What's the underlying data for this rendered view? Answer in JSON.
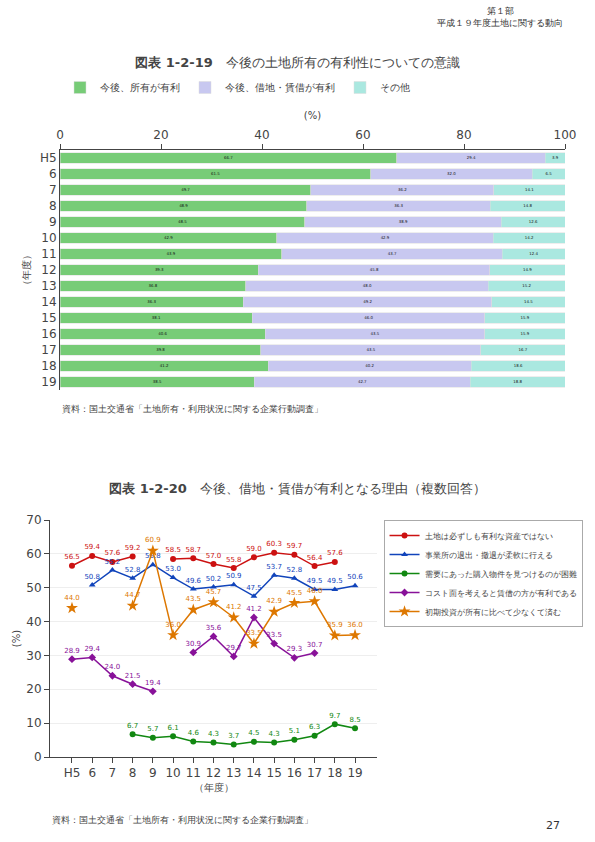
{
  "chart_data": [
    {
      "type": "bar",
      "orientation": "horizontal",
      "stacked": true,
      "title": "今後の土地所有の有利性についての意識",
      "subtitle": "図表 1-2-19",
      "categories": [
        "H5",
        "6",
        "7",
        "8",
        "9",
        "10",
        "11",
        "12",
        "13",
        "14",
        "15",
        "16",
        "17",
        "18",
        "19"
      ],
      "series": [
        {
          "name": "今後、所有が有利",
          "color": "#77cc77",
          "values": [
            66.7,
            61.5,
            49.7,
            48.9,
            48.5,
            42.9,
            43.9,
            39.3,
            36.8,
            36.3,
            38.1,
            40.6,
            39.8,
            41.2,
            38.5
          ],
          "value_labels": [
            "66.7",
            "61.5",
            "49.7",
            "48.9",
            "48.5",
            "42.9",
            "43.9",
            "39.3",
            "36.8",
            "36.3",
            "38.1",
            "40.6",
            "39.8",
            "41.2",
            "38.5"
          ]
        },
        {
          "name": "今後、借地・賃借が有利",
          "color": "#c8c8f0",
          "values": [
            29.4,
            32.0,
            36.2,
            36.3,
            38.9,
            42.9,
            43.7,
            45.8,
            48.0,
            49.2,
            46.0,
            43.5,
            43.5,
            40.2,
            42.7
          ],
          "value_labels": [
            "29.4",
            "32.0",
            "36.2",
            "36.3",
            "38.9",
            "42.9",
            "43.7",
            "45.8",
            "48.0",
            "49.2",
            "46.0",
            "43.5",
            "43.5",
            "40.2",
            "42.7"
          ]
        },
        {
          "name": "その他",
          "color": "#aae8e0",
          "values": [
            3.9,
            6.5,
            14.1,
            14.8,
            12.6,
            14.2,
            12.4,
            14.9,
            15.2,
            14.5,
            15.9,
            15.9,
            16.7,
            18.6,
            18.8
          ],
          "value_labels": [
            "3.9",
            "6.5",
            "14.1",
            "14.8",
            "12.6",
            "14.2",
            "12.4",
            "14.9",
            "15.2",
            "14.5",
            "15.9",
            "15.9",
            "16.7",
            "18.6",
            "18.8"
          ]
        }
      ],
      "xlim": [
        0,
        100
      ],
      "xticks": [
        0,
        20,
        40,
        60,
        80,
        100
      ],
      "xlabel": "(%)",
      "ylabel": "（年度）",
      "grid": false,
      "data_labels": true,
      "legend": "top",
      "annotations": [
        "第１部\n平成１９年度土地に関する動向",
        "資料：国土交通省「土地所有・利用状況に関する企業行動調査」"
      ]
    },
    {
      "type": "line",
      "title": "今後、借地・賃借が有利となる理由（複数回答）",
      "subtitle": "図表 1-2-20",
      "categories": [
        "H5",
        "6",
        "7",
        "8",
        "9",
        "10",
        "11",
        "12",
        "13",
        "14",
        "15",
        "16",
        "17",
        "18",
        "19"
      ],
      "series": [
        {
          "name": "土地は必ずしも有利な資産ではない",
          "color": "#cc1111",
          "marker": "circle",
          "values": [
            56.5,
            59.4,
            57.6,
            59.2,
            null,
            58.5,
            58.7,
            57.0,
            55.8,
            59.0,
            60.3,
            59.7,
            56.4,
            57.6,
            null
          ],
          "value_labels": [
            "56.5",
            "59.4",
            "57.6",
            "59.2",
            null,
            "58.5",
            "58.7",
            "57.0",
            "55.8",
            "59.0",
            "60.3",
            "59.7",
            "56.4",
            "57.6",
            null
          ]
        },
        {
          "name": "事業所の退出・撤退が柔軟に行える",
          "color": "#1144bb",
          "marker": "triangle-up",
          "values": [
            null,
            50.8,
            55.2,
            52.8,
            56.8,
            53.0,
            49.6,
            50.2,
            50.9,
            47.5,
            53.7,
            52.8,
            49.5,
            49.5,
            50.6
          ],
          "value_labels": [
            null,
            "50.8",
            "55.2",
            "52.8",
            "56.8",
            "53.0",
            "49.6",
            "50.2",
            "50.9",
            "47.5",
            "53.7",
            "52.8",
            "49.5",
            "49.5",
            "50.6"
          ]
        },
        {
          "name": "需要にあった購入物件を見つけるのが困難",
          "color": "#118811",
          "marker": "circle",
          "values": [
            null,
            null,
            null,
            6.7,
            5.7,
            6.1,
            4.6,
            4.3,
            3.7,
            4.5,
            4.3,
            5.1,
            6.3,
            9.7,
            8.5
          ],
          "value_labels": [
            null,
            null,
            null,
            "6.7",
            "5.7",
            "6.1",
            "4.6",
            "4.3",
            "3.7",
            "4.5",
            "4.3",
            "5.1",
            "6.3",
            "9.7",
            "8.5"
          ]
        },
        {
          "name": "コスト面を考えると賃借の方が有利である",
          "color": "#881199",
          "marker": "diamond",
          "values": [
            28.9,
            29.4,
            24.0,
            21.5,
            19.4,
            null,
            30.9,
            35.6,
            29.7,
            41.2,
            33.5,
            29.3,
            30.7,
            null,
            null
          ],
          "value_labels": [
            "28.9",
            "29.4",
            "24.0",
            "21.5",
            "19.4",
            null,
            "30.9",
            "35.6",
            "29.7",
            "41.2",
            "33.5",
            "29.3",
            "30.7",
            null,
            null
          ]
        },
        {
          "name": "初期投資が所有に比べて少なくて済む",
          "color": "#dd7700",
          "marker": "star",
          "values": [
            44.0,
            null,
            null,
            44.7,
            60.9,
            36.0,
            43.5,
            45.7,
            41.2,
            33.5,
            42.9,
            45.5,
            46.0,
            35.9,
            36.0
          ],
          "value_labels": [
            "44.0",
            null,
            null,
            "44.7",
            "60.9",
            "36.0",
            "43.5",
            "45.7",
            "41.2",
            "33.5",
            "42.9",
            "45.5",
            "46.0",
            "35.9",
            "36.0"
          ]
        }
      ],
      "ylim": [
        0,
        70
      ],
      "yticks": [
        0,
        10,
        20,
        30,
        40,
        50,
        60,
        70
      ],
      "xlabel": "（年度）",
      "ylabel": "(%)",
      "grid": true,
      "data_labels": true,
      "legend": "right",
      "annotations": [
        "資料：国土交通省「土地所有・利用状況に関する企業行動調査」",
        "27"
      ]
    }
  ]
}
